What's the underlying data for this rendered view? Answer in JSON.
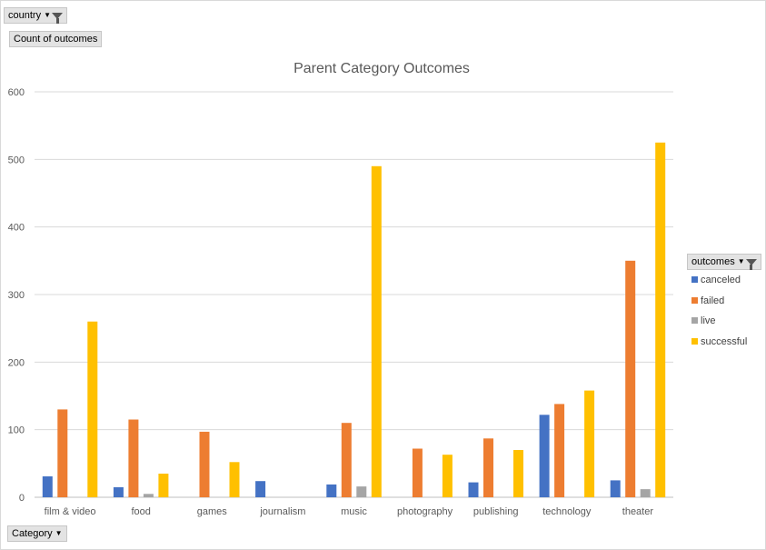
{
  "filters": {
    "country_label": "country",
    "value_field_label": "Count of outcomes",
    "axis_field_label": "Category",
    "legend_field_label": "outcomes"
  },
  "chart_data": {
    "type": "bar",
    "title": "Parent Category Outcomes",
    "xlabel": "",
    "ylabel": "",
    "categories": [
      "film & video",
      "food",
      "games",
      "journalism",
      "music",
      "photography",
      "publishing",
      "technology",
      "theater"
    ],
    "series": [
      {
        "name": "canceled",
        "color": "#4472c4",
        "values": [
          31,
          15,
          0,
          24,
          19,
          0,
          22,
          122,
          25
        ]
      },
      {
        "name": "failed",
        "color": "#ed7d31",
        "values": [
          130,
          115,
          97,
          0,
          110,
          72,
          87,
          138,
          350
        ]
      },
      {
        "name": "live",
        "color": "#a5a5a5",
        "values": [
          0,
          5,
          0,
          0,
          16,
          0,
          0,
          0,
          12
        ]
      },
      {
        "name": "successful",
        "color": "#ffc000",
        "values": [
          260,
          35,
          52,
          0,
          490,
          63,
          70,
          158,
          525
        ]
      }
    ],
    "ylim": [
      0,
      600
    ],
    "yticks": [
      0,
      100,
      200,
      300,
      400,
      500,
      600
    ],
    "grid": true,
    "legend_position": "right"
  }
}
